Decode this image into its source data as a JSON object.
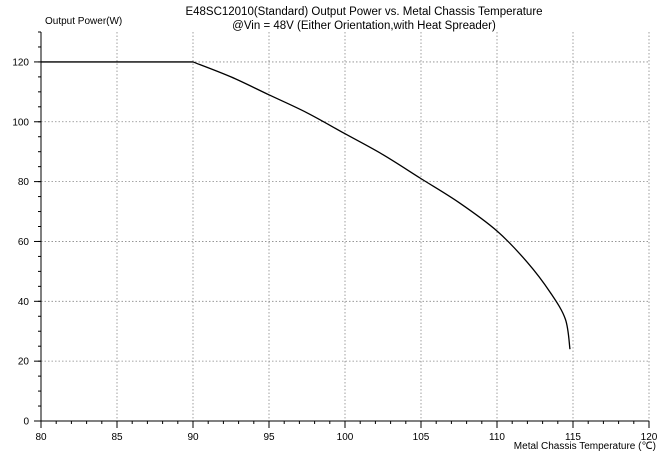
{
  "chart_data": {
    "type": "line",
    "title": "E48SC12010(Standard) Output Power vs. Metal Chassis Temperature",
    "subtitle": "@Vin = 48V (Either Orientation,with Heat Spreader)",
    "xlabel": "Metal Chassis Temperature (℃)",
    "ylabel": "Output Power(W)",
    "xlim": [
      80,
      120
    ],
    "ylim": [
      0,
      130
    ],
    "xticks": [
      80,
      85,
      90,
      95,
      100,
      105,
      110,
      115,
      120
    ],
    "yticks": [
      0,
      20,
      40,
      60,
      80,
      100,
      120
    ],
    "grid": true,
    "series": [
      {
        "color": "#000000",
        "x": [
          80,
          90,
          92.5,
          95,
          97.5,
          100,
          102.5,
          105,
          107.5,
          110,
          112,
          113.5,
          114.5,
          114.8
        ],
        "y": [
          120,
          120,
          115,
          109,
          103,
          96,
          89,
          81,
          73,
          63.5,
          53,
          43,
          34,
          24
        ]
      }
    ]
  }
}
